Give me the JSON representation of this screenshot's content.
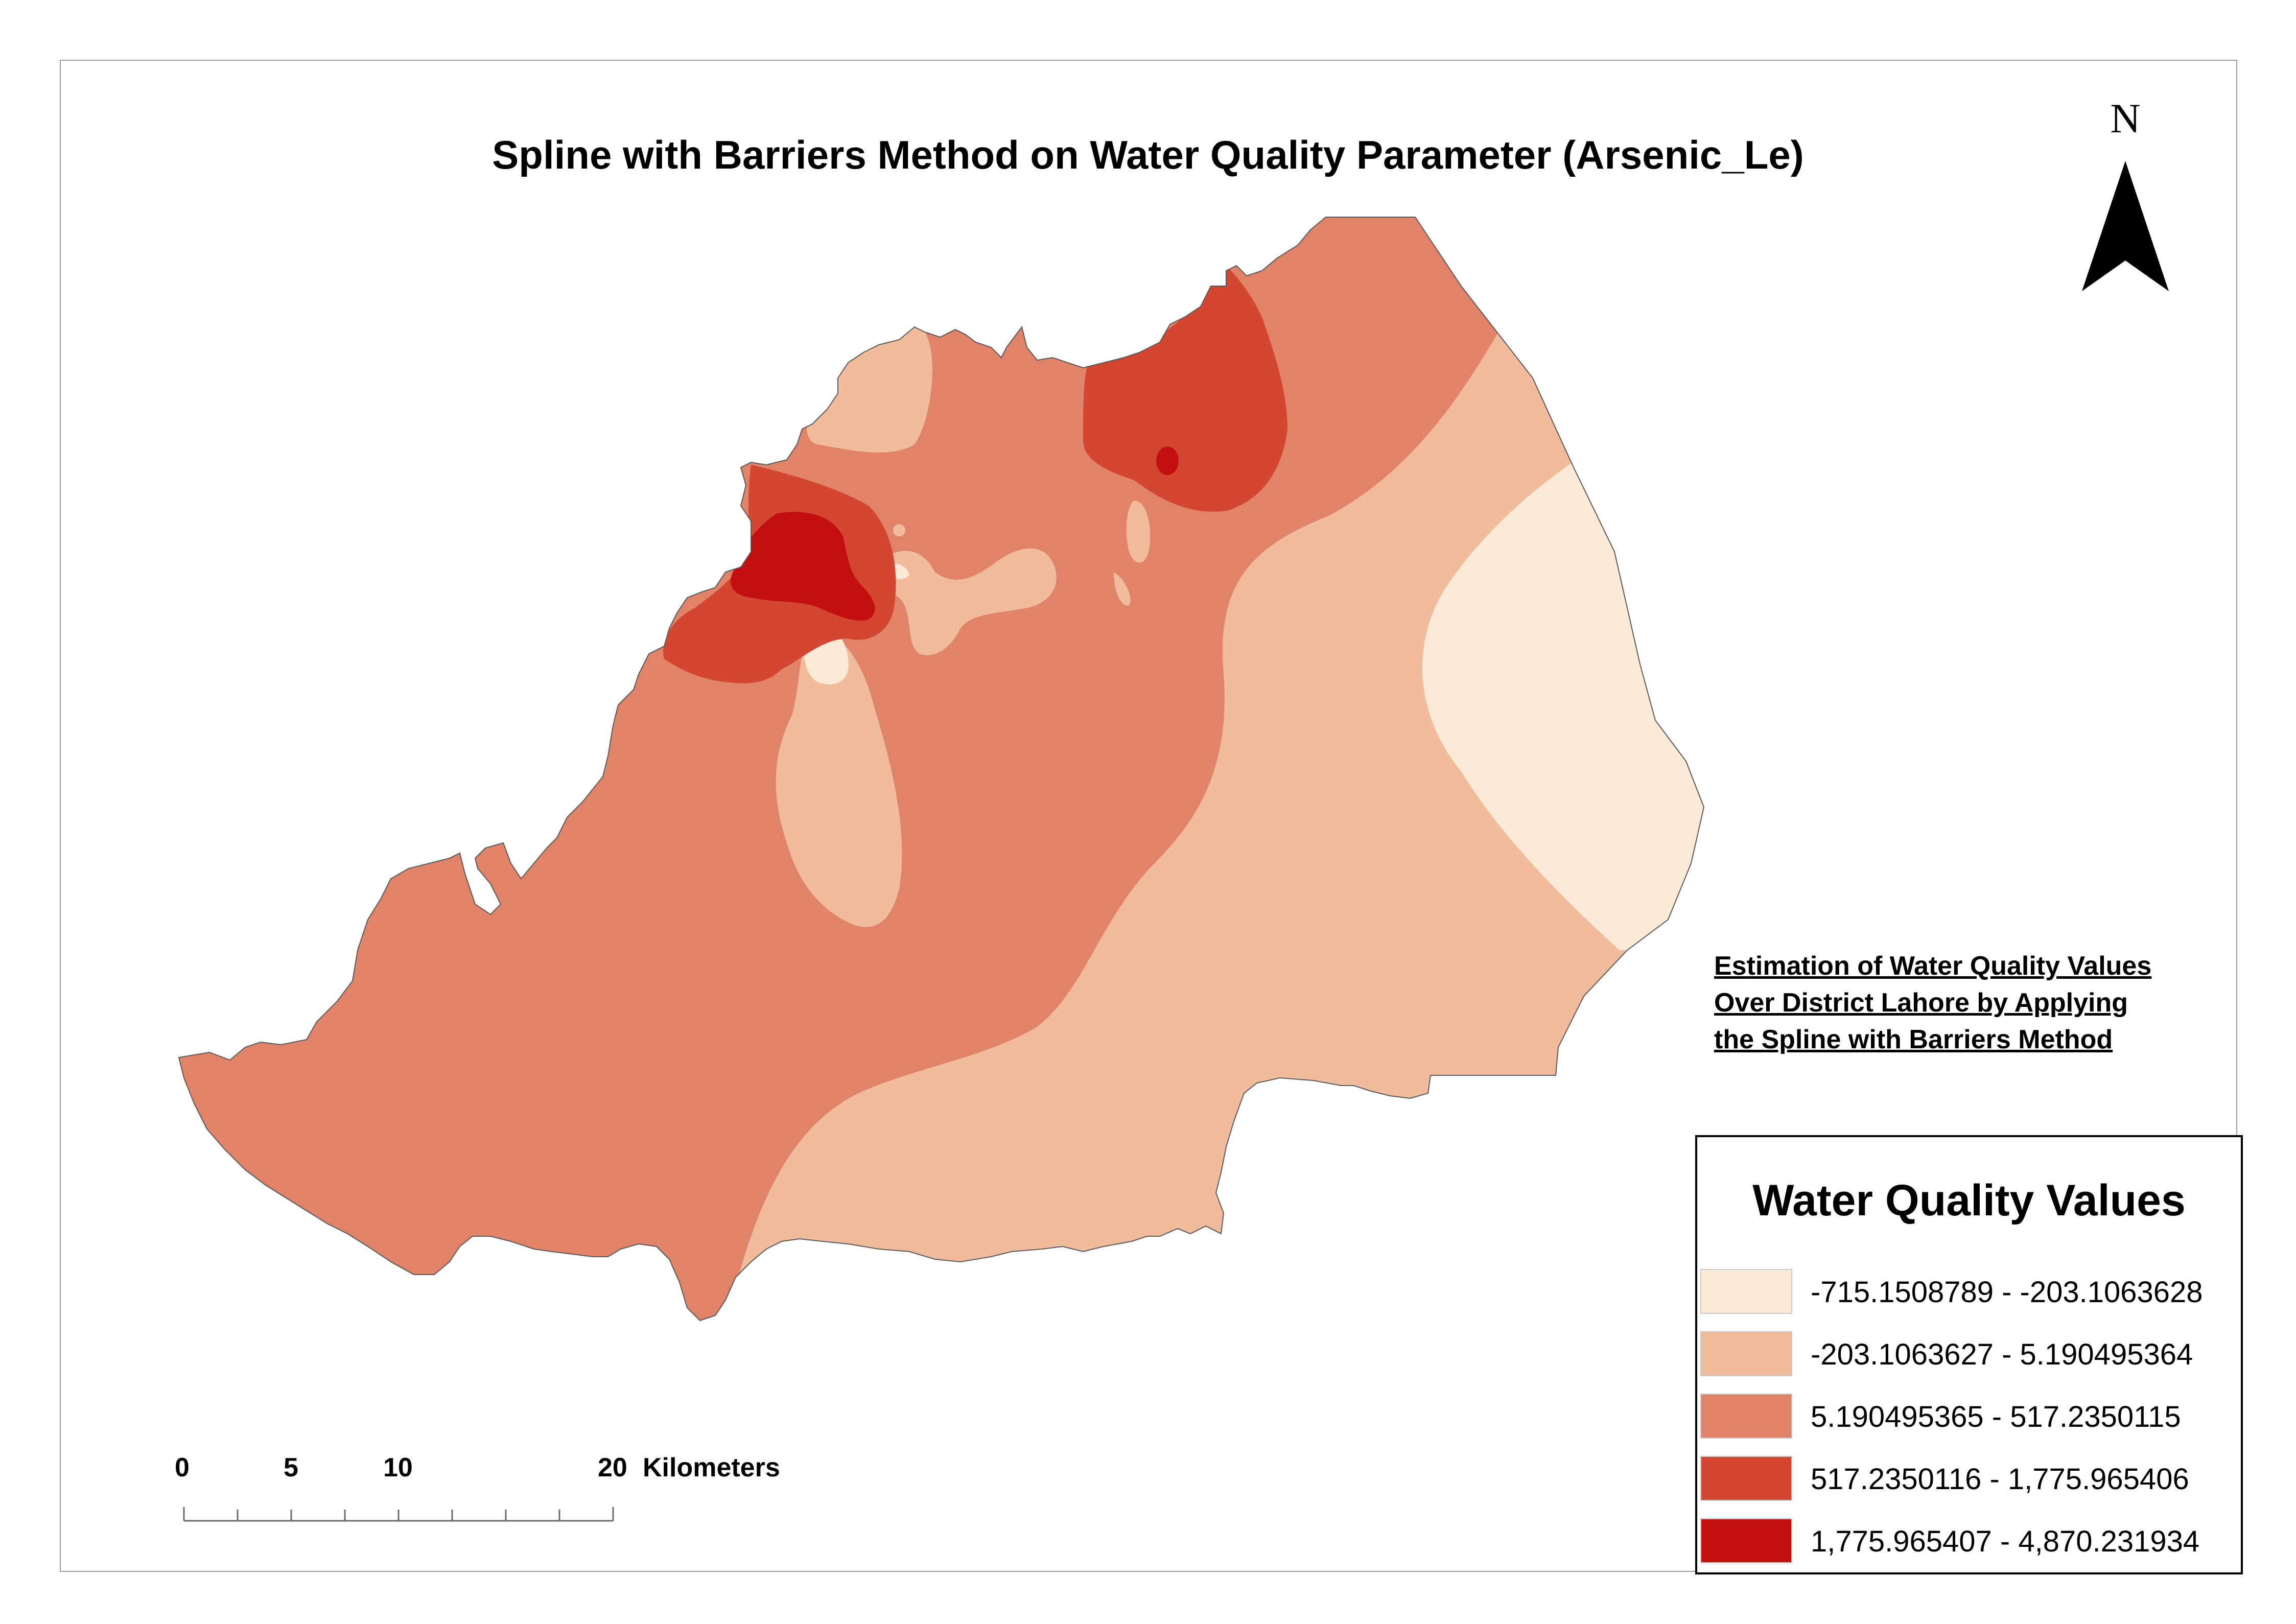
{
  "map": {
    "title": "Spline with Barriers Method on Water Quality Parameter (Arsenic_Le)",
    "north_arrow": {
      "letter": "N",
      "icon": "north-arrow-icon"
    },
    "note_lines": [
      "Estimation of Water Quality Values",
      "Over District Lahore by Applying",
      "the Spline with Barriers Method"
    ],
    "legend": {
      "title": "Water Quality Values",
      "classes": [
        {
          "label": "-715.1508789 - -203.1063628",
          "color": "#fdebd8"
        },
        {
          "label": "-203.1063627 - 5.190495364",
          "color": "#f0bc9c"
        },
        {
          "label": "5.190495365 - 517.2350115",
          "color": "#e08368"
        },
        {
          "label": "517.2350116 - 1,775.965406",
          "color": "#d24632"
        },
        {
          "label": "1,775.965407 - 4,870.231934",
          "color": "#c30f10"
        }
      ]
    },
    "scale_bar": {
      "ticks": [
        "0",
        "5",
        "10",
        "20"
      ],
      "unit": "Kilometers"
    }
  }
}
